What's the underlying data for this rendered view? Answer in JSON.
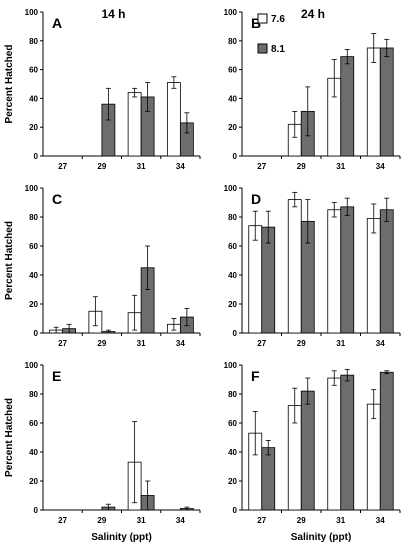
{
  "colors": {
    "low": "#ffffff",
    "high": "#6d6d6d",
    "stroke": "#000000"
  },
  "legend": {
    "items": [
      "7.6",
      "8.1"
    ]
  },
  "chart_data": [
    {
      "type": "bar",
      "label": "A",
      "title": "14 h",
      "categories": [
        "27",
        "29",
        "31",
        "34"
      ],
      "ylim": [
        0,
        100
      ],
      "yticks": [
        0,
        20,
        40,
        60,
        80,
        100
      ],
      "ylabel": "Percent Hatched",
      "xlabel": "",
      "series": [
        {
          "name": "7.6",
          "values": [
            0,
            0,
            44,
            51
          ],
          "errors": [
            0,
            0,
            3,
            4
          ]
        },
        {
          "name": "8.1",
          "values": [
            0,
            36,
            41,
            23
          ],
          "errors": [
            0,
            11,
            10,
            7
          ]
        }
      ]
    },
    {
      "type": "bar",
      "label": "B",
      "title": "24 h",
      "categories": [
        "27",
        "29",
        "31",
        "34"
      ],
      "ylim": [
        0,
        100
      ],
      "yticks": [
        0,
        20,
        40,
        60,
        80,
        100
      ],
      "ylabel": "",
      "xlabel": "",
      "series": [
        {
          "name": "7.6",
          "values": [
            0,
            22,
            54,
            75
          ],
          "errors": [
            0,
            9,
            13,
            10
          ]
        },
        {
          "name": "8.1",
          "values": [
            0,
            31,
            69,
            75
          ],
          "errors": [
            0,
            17,
            5,
            6
          ]
        }
      ]
    },
    {
      "type": "bar",
      "label": "C",
      "title": "",
      "categories": [
        "27",
        "29",
        "31",
        "34"
      ],
      "ylim": [
        0,
        100
      ],
      "yticks": [
        0,
        20,
        40,
        60,
        80,
        100
      ],
      "ylabel": "Percent Hatched",
      "xlabel": "",
      "series": [
        {
          "name": "7.6",
          "values": [
            2,
            15,
            14,
            6
          ],
          "errors": [
            2,
            10,
            12,
            4
          ]
        },
        {
          "name": "8.1",
          "values": [
            3,
            1,
            45,
            11
          ],
          "errors": [
            3,
            1,
            15,
            6
          ]
        }
      ]
    },
    {
      "type": "bar",
      "label": "D",
      "title": "",
      "categories": [
        "27",
        "29",
        "31",
        "34"
      ],
      "ylim": [
        0,
        100
      ],
      "yticks": [
        0,
        20,
        40,
        60,
        80,
        100
      ],
      "ylabel": "",
      "xlabel": "",
      "series": [
        {
          "name": "7.6",
          "values": [
            74,
            92,
            85,
            79
          ],
          "errors": [
            10,
            5,
            5,
            10
          ]
        },
        {
          "name": "8.1",
          "values": [
            73,
            77,
            87,
            85
          ],
          "errors": [
            11,
            15,
            6,
            8
          ]
        }
      ]
    },
    {
      "type": "bar",
      "label": "E",
      "title": "",
      "categories": [
        "27",
        "29",
        "31",
        "34"
      ],
      "ylim": [
        0,
        100
      ],
      "yticks": [
        0,
        20,
        40,
        60,
        80,
        100
      ],
      "ylabel": "Percent Hatched",
      "xlabel": "Salinity (ppt)",
      "series": [
        {
          "name": "7.6",
          "values": [
            0,
            0,
            33,
            0
          ],
          "errors": [
            0,
            0,
            28,
            0
          ]
        },
        {
          "name": "8.1",
          "values": [
            0,
            2,
            10,
            1
          ],
          "errors": [
            0,
            2,
            10,
            1
          ]
        }
      ]
    },
    {
      "type": "bar",
      "label": "F",
      "title": "",
      "categories": [
        "27",
        "29",
        "31",
        "34"
      ],
      "ylim": [
        0,
        100
      ],
      "yticks": [
        0,
        20,
        40,
        60,
        80,
        100
      ],
      "ylabel": "",
      "xlabel": "Salinity (ppt)",
      "series": [
        {
          "name": "7.6",
          "values": [
            53,
            72,
            91,
            73
          ],
          "errors": [
            15,
            12,
            5,
            10
          ]
        },
        {
          "name": "8.1",
          "values": [
            43,
            82,
            93,
            95
          ],
          "errors": [
            5,
            9,
            4,
            1
          ]
        }
      ]
    }
  ]
}
